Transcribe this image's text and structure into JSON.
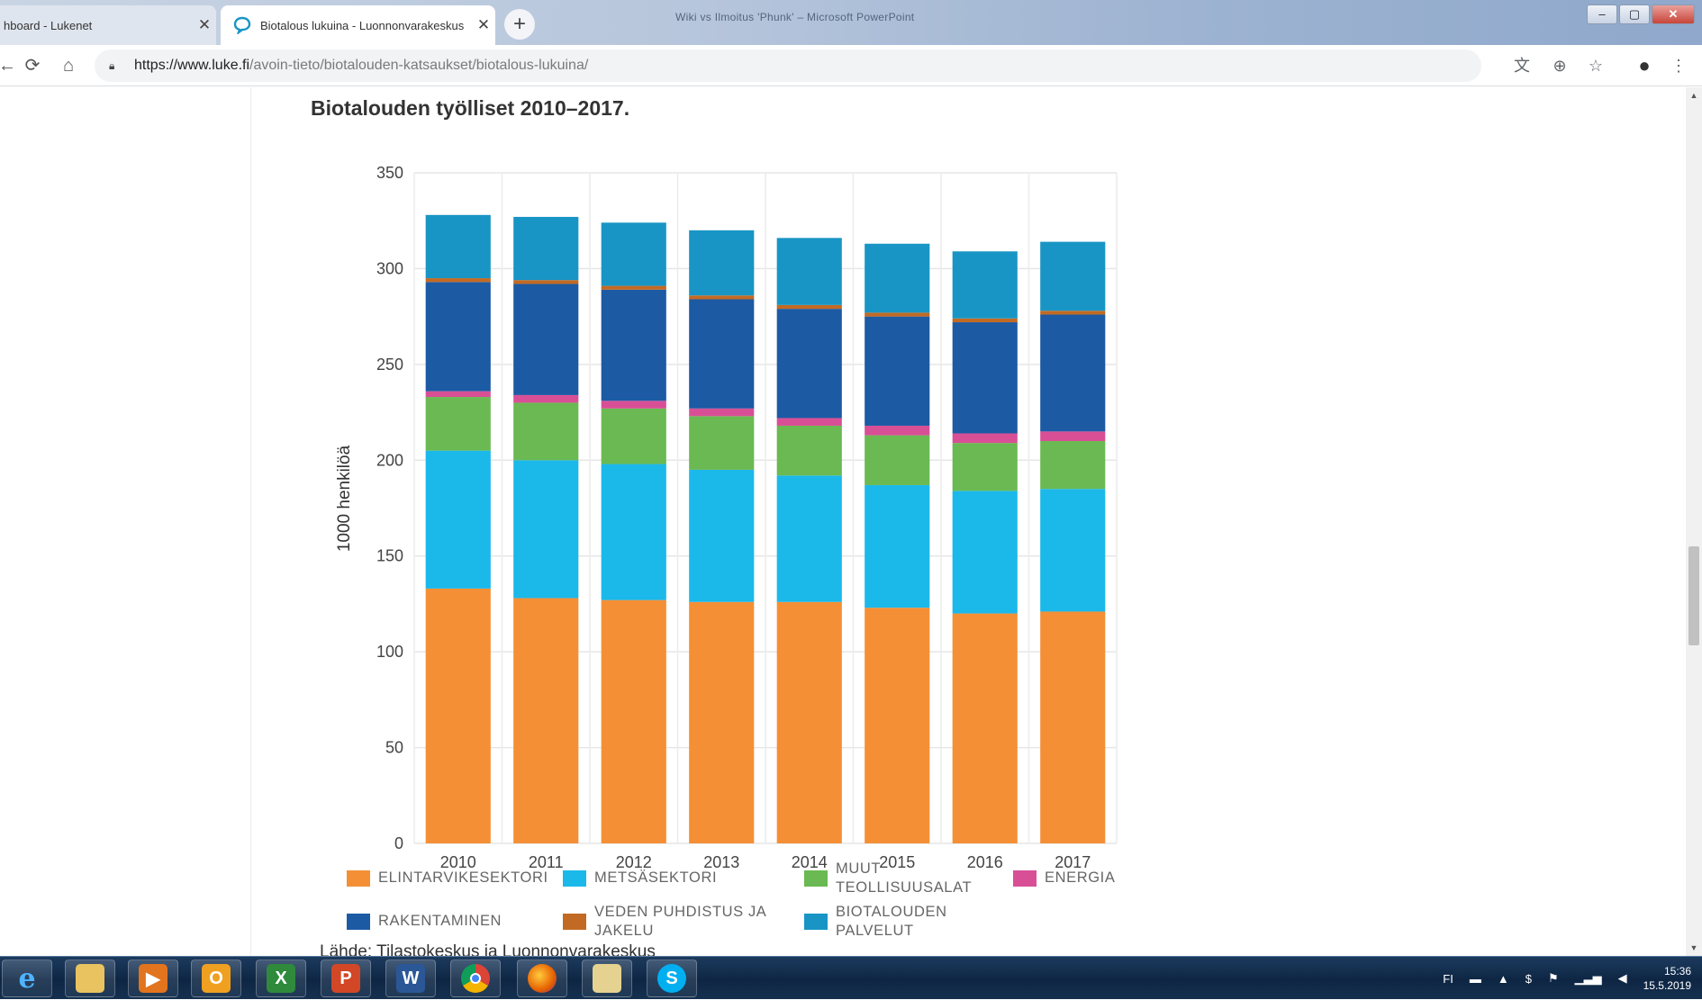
{
  "browser": {
    "tabs": [
      {
        "label": "hboard - Lukenet",
        "active": false
      },
      {
        "label": "Biotalous lukuina - Luonnonvarakeskus",
        "active": true
      }
    ],
    "new_tab_label": "+",
    "window_title": "Wiki vs Ilmoitus 'Phunk' – Microsoft PowerPoint",
    "url": {
      "host": "https://www.luke.fi",
      "path": "/avoin-tieto/biotalouden-katsaukset/biotalous-lukuina/"
    }
  },
  "page": {
    "chart_title": "Biotalouden työlliset 2010–2017.",
    "source_text": "Lähde: Tilastokeskus ja Luonnonvarakeskus"
  },
  "chart_data": {
    "type": "bar",
    "stacked": true,
    "categories": [
      "2010",
      "2011",
      "2012",
      "2013",
      "2014",
      "2015",
      "2016",
      "2017"
    ],
    "ylabel": "1000 henkilöä",
    "xlabel": "",
    "ylim": [
      0,
      350
    ],
    "yticks": [
      0,
      50,
      100,
      150,
      200,
      250,
      300,
      350
    ],
    "grid": true,
    "legend_position": "bottom",
    "series": [
      {
        "name": "ELINTARVIKESEKTORI",
        "color": "#f58f35",
        "values": [
          133,
          128,
          127,
          126,
          126,
          123,
          120,
          121
        ]
      },
      {
        "name": "METSÄSEKTORI",
        "color": "#1bb8ea",
        "values": [
          72,
          72,
          71,
          69,
          66,
          64,
          64,
          64
        ]
      },
      {
        "name": "MUUT TEOLLISUUSALAT",
        "color": "#6ab952",
        "values": [
          28,
          30,
          29,
          28,
          26,
          26,
          25,
          25
        ]
      },
      {
        "name": "ENERGIA",
        "color": "#d94f96",
        "values": [
          3,
          4,
          4,
          4,
          4,
          5,
          5,
          5
        ]
      },
      {
        "name": "RAKENTAMINEN",
        "color": "#1c5aa4",
        "values": [
          57,
          58,
          58,
          57,
          57,
          57,
          58,
          61
        ]
      },
      {
        "name": "VEDEN PUHDISTUS JA JAKELU",
        "color": "#c26a23",
        "values": [
          2,
          2,
          2,
          2,
          2,
          2,
          2,
          2
        ]
      },
      {
        "name": "BIOTALOUDEN PALVELUT",
        "color": "#1895c5",
        "values": [
          33,
          33,
          33,
          34,
          35,
          36,
          35,
          36
        ]
      }
    ]
  },
  "legend": [
    {
      "label": "ELINTARVIKESEKTORI",
      "color": "#f58f35"
    },
    {
      "label": "METSÄSEKTORI",
      "color": "#1bb8ea"
    },
    {
      "label": "MUUT TEOLLISUUSALAT",
      "color": "#6ab952"
    },
    {
      "label": "ENERGIA",
      "color": "#d94f96"
    },
    {
      "label": "RAKENTAMINEN",
      "color": "#1c5aa4"
    },
    {
      "label": "VEDEN PUHDISTUS JA JAKELU",
      "color": "#c26a23"
    },
    {
      "label": "BIOTALOUDEN PALVELUT",
      "color": "#1895c5"
    }
  ],
  "taskbar": {
    "apps": [
      "internet-explorer-icon",
      "file-explorer-icon",
      "media-player-icon",
      "outlook-icon",
      "excel-icon",
      "powerpoint-icon",
      "word-icon",
      "chrome-icon",
      "firefox-icon",
      "folder-icon",
      "skype-icon"
    ],
    "tray_lang": "FI",
    "clock_time": "15:36",
    "clock_date": "15.5.2019"
  }
}
